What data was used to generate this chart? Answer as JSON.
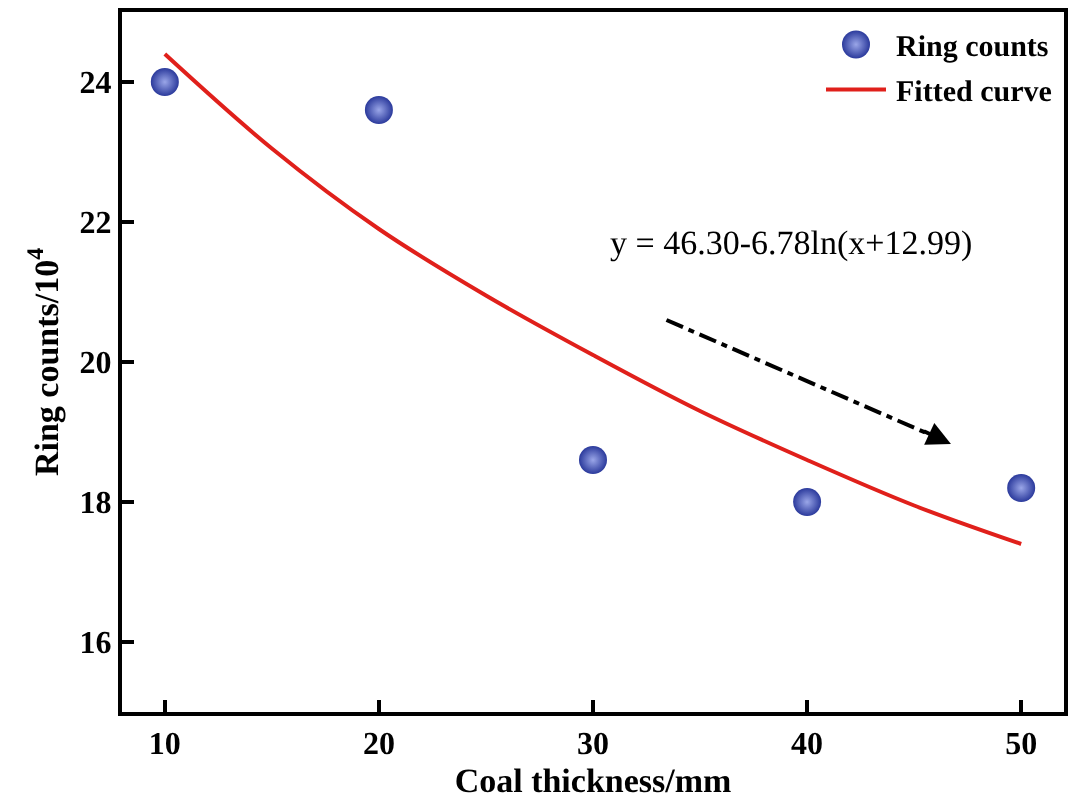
{
  "chart_data": {
    "type": "scatter",
    "xlabel": "Coal thickness/mm",
    "ylabel": "Ring counts/10$^{4}$",
    "xlim": [
      8,
      52
    ],
    "xticks": [
      10,
      20,
      30,
      40,
      50
    ],
    "ylim": [
      15,
      25
    ],
    "yticks": [
      16,
      18,
      20,
      22,
      24
    ],
    "legend": "top right",
    "series": [
      {
        "name": "Ring counts",
        "marker": "circle",
        "color": "#2b3a9c",
        "x": [
          10,
          20,
          30,
          40,
          50
        ],
        "values": [
          24.0,
          23.6,
          18.6,
          18.0,
          18.2
        ]
      },
      {
        "name": "Fitted curve",
        "type": "line",
        "marker": "none",
        "color": "#e0201b",
        "line_style": "solid",
        "x": [
          10,
          15,
          20,
          25,
          30,
          35,
          40,
          45,
          50
        ],
        "values": [
          24.4,
          23.05,
          21.9,
          20.95,
          20.1,
          19.3,
          18.6,
          17.95,
          17.4
        ]
      }
    ],
    "annotations": [
      "y = 46.30-6.78ln(x+12.99)"
    ]
  }
}
